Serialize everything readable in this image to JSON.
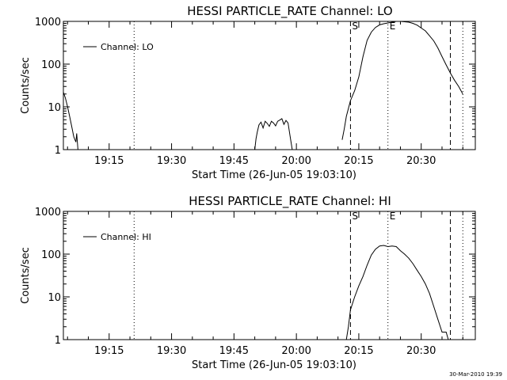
{
  "footer": {
    "timestamp": "30-Mar-2010 19:39"
  },
  "chart_data": [
    {
      "type": "line",
      "title": "HESSI PARTICLE_RATE Channel: LO",
      "xlabel": "Start Time (26-Jun-05 19:03:10)",
      "ylabel": "Counts/sec",
      "xlim": [
        "19:04",
        "20:43"
      ],
      "ylim": [
        1,
        1000
      ],
      "yscale": "log",
      "grid": false,
      "legend": {
        "placement": "top-left",
        "entries": [
          "Channel: LO"
        ]
      },
      "x_ticks": [
        "19:15",
        "19:30",
        "19:45",
        "20:00",
        "20:15",
        "20:30"
      ],
      "y_ticks": [
        "1",
        "10",
        "100",
        "1000"
      ],
      "line_color": "#000000",
      "markers": [
        {
          "time": "19:21",
          "style": "dotted",
          "label": ""
        },
        {
          "time": "20:13",
          "style": "dashed",
          "label": "S"
        },
        {
          "time": "20:22",
          "style": "dotted",
          "label": "E"
        },
        {
          "time": "20:37",
          "style": "dashed",
          "label": ""
        },
        {
          "time": "20:40",
          "style": "dotted",
          "label": ""
        }
      ],
      "series": [
        {
          "name": "Channel: LO",
          "segments": [
            [
              [
                "19:04",
                22
              ],
              [
                "19:04.5",
                16
              ],
              [
                "19:05",
                10
              ],
              [
                "19:05.5",
                6
              ],
              [
                "19:06",
                3.5
              ],
              [
                "19:06.5",
                2
              ],
              [
                "19:07",
                1.5
              ],
              [
                "19:07.2",
                2.4
              ],
              [
                "19:07.5",
                1
              ]
            ],
            [
              [
                "19:50",
                1
              ],
              [
                "19:50.3",
                1.8
              ],
              [
                "19:50.6",
                2.6
              ],
              [
                "19:51",
                3.8
              ],
              [
                "19:51.5",
                4.4
              ],
              [
                "19:52",
                3.2
              ],
              [
                "19:52.5",
                4.6
              ],
              [
                "19:53",
                4.1
              ],
              [
                "19:53.5",
                3.5
              ],
              [
                "19:54",
                4.6
              ],
              [
                "19:54.5",
                4.2
              ],
              [
                "19:55",
                3.6
              ],
              [
                "19:55.5",
                4.6
              ],
              [
                "19:56",
                4.9
              ],
              [
                "19:56.5",
                5.3
              ],
              [
                "19:57",
                3.9
              ],
              [
                "19:57.5",
                4.8
              ],
              [
                "19:58",
                4.2
              ],
              [
                "19:58.5",
                2
              ],
              [
                "19:59",
                1
              ]
            ],
            [
              [
                "20:11",
                1.7
              ],
              [
                "20:11.5",
                3
              ],
              [
                "20:12",
                6
              ],
              [
                "20:13",
                14
              ],
              [
                "20:14",
                24
              ],
              [
                "20:15",
                50
              ],
              [
                "20:16",
                150
              ],
              [
                "20:17",
                360
              ],
              [
                "20:18",
                560
              ],
              [
                "20:19",
                720
              ],
              [
                "20:20",
                830
              ],
              [
                "20:21",
                880
              ],
              [
                "20:22",
                920
              ],
              [
                "20:23",
                960
              ],
              [
                "20:24",
                1000
              ],
              [
                "20:25",
                1000
              ],
              [
                "20:26",
                980
              ],
              [
                "20:27",
                960
              ],
              [
                "20:28",
                900
              ],
              [
                "20:29",
                820
              ],
              [
                "20:30",
                700
              ],
              [
                "20:31",
                600
              ],
              [
                "20:32",
                460
              ],
              [
                "20:33",
                350
              ],
              [
                "20:34",
                240
              ],
              [
                "20:35",
                150
              ],
              [
                "20:36",
                96
              ],
              [
                "20:37",
                62
              ],
              [
                "20:38",
                42
              ],
              [
                "20:39",
                30
              ],
              [
                "20:40",
                20
              ]
            ]
          ]
        }
      ]
    },
    {
      "type": "line",
      "title": "HESSI PARTICLE_RATE Channel: HI",
      "xlabel": "Start Time (26-Jun-05 19:03:10)",
      "ylabel": "Counts/sec",
      "xlim": [
        "19:04",
        "20:43"
      ],
      "ylim": [
        1,
        1000
      ],
      "yscale": "log",
      "grid": false,
      "legend": {
        "placement": "top-left",
        "entries": [
          "Channel: HI"
        ]
      },
      "x_ticks": [
        "19:15",
        "19:30",
        "19:45",
        "20:00",
        "20:15",
        "20:30"
      ],
      "y_ticks": [
        "1",
        "10",
        "100",
        "1000"
      ],
      "line_color": "#000000",
      "markers": [
        {
          "time": "19:21",
          "style": "dotted",
          "label": ""
        },
        {
          "time": "20:13",
          "style": "dashed",
          "label": "S"
        },
        {
          "time": "20:22",
          "style": "dotted",
          "label": "E"
        },
        {
          "time": "20:37",
          "style": "dashed",
          "label": ""
        },
        {
          "time": "20:40",
          "style": "dotted",
          "label": ""
        }
      ],
      "series": [
        {
          "name": "Channel: HI",
          "segments": [
            [
              [
                "20:12",
                1
              ],
              [
                "20:12.5",
                2
              ],
              [
                "20:13",
                5
              ],
              [
                "20:14",
                10
              ],
              [
                "20:15",
                18
              ],
              [
                "20:16",
                30
              ],
              [
                "20:17",
                55
              ],
              [
                "20:18",
                95
              ],
              [
                "20:19",
                130
              ],
              [
                "20:20",
                155
              ],
              [
                "20:21",
                160
              ],
              [
                "20:22",
                150
              ],
              [
                "20:23",
                155
              ],
              [
                "20:24",
                150
              ],
              [
                "20:25",
                120
              ],
              [
                "20:26",
                100
              ],
              [
                "20:27",
                80
              ],
              [
                "20:28",
                60
              ],
              [
                "20:29",
                42
              ],
              [
                "20:30",
                30
              ],
              [
                "20:31",
                20
              ],
              [
                "20:32",
                12
              ],
              [
                "20:33",
                6
              ],
              [
                "20:34",
                3
              ],
              [
                "20:35",
                1.5
              ],
              [
                "20:36",
                1.5
              ],
              [
                "20:36.5",
                1
              ]
            ]
          ]
        }
      ]
    }
  ]
}
